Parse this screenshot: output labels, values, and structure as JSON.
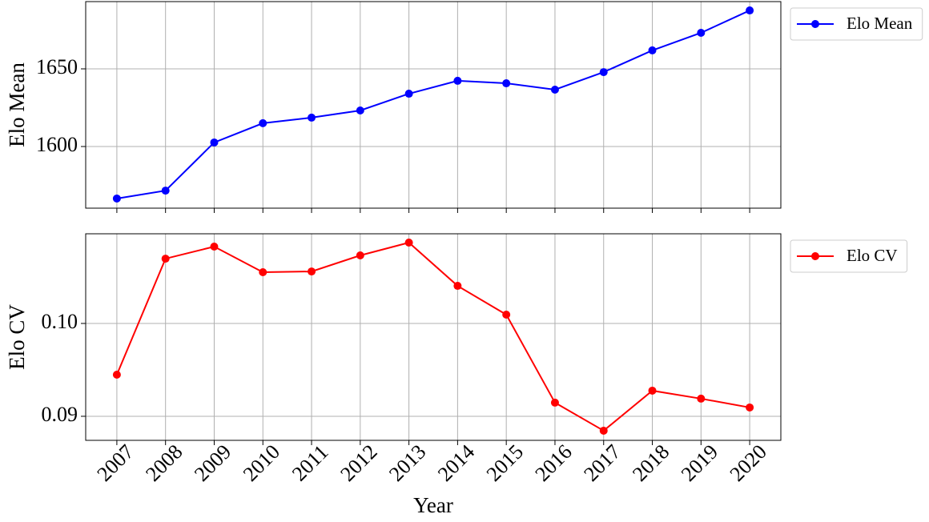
{
  "chart_data": [
    {
      "type": "line",
      "ylabel": "Elo Mean",
      "x": [
        2007,
        2008,
        2009,
        2010,
        2011,
        2012,
        2013,
        2014,
        2015,
        2016,
        2017,
        2018,
        2019,
        2020
      ],
      "series": [
        {
          "name": "Elo Mean",
          "color": "#0000ff",
          "values": [
            1566.5,
            1571.6,
            1602.6,
            1615,
            1618.6,
            1623.2,
            1634,
            1642.3,
            1640.7,
            1636.6,
            1647.9,
            1661.9,
            1673.2,
            1687.6
          ]
        }
      ],
      "xlim": [
        2006.36,
        2020.64
      ],
      "xticks": [
        2007,
        2008,
        2009,
        2010,
        2011,
        2012,
        2013,
        2014,
        2015,
        2016,
        2017,
        2018,
        2019,
        2020
      ],
      "ylim": [
        1560.3,
        1693.3
      ],
      "yticks": [
        1600,
        1650
      ],
      "grid": true,
      "legend": "outside-upper-right"
    },
    {
      "type": "line",
      "xlabel": "Year",
      "ylabel": "Elo CV",
      "x": [
        2007,
        2008,
        2009,
        2010,
        2011,
        2012,
        2013,
        2014,
        2015,
        2016,
        2017,
        2018,
        2019,
        2020
      ],
      "series": [
        {
          "name": "Elo CV",
          "color": "#ff0000",
          "values": [
            0.09448,
            0.10698,
            0.10828,
            0.10552,
            0.1056,
            0.10733,
            0.10871,
            0.10405,
            0.10095,
            0.09147,
            0.08845,
            0.09276,
            0.0919,
            0.09095
          ]
        }
      ],
      "xlim": [
        2006.36,
        2020.64
      ],
      "xticks": [
        2007,
        2008,
        2009,
        2010,
        2011,
        2012,
        2013,
        2014,
        2015,
        2016,
        2017,
        2018,
        2019,
        2020
      ],
      "ylim": [
        0.08741,
        0.10966
      ],
      "yticks": [
        {
          "value": 0.09,
          "label": "0.09"
        },
        {
          "value": 0.1,
          "label": "0.10"
        }
      ],
      "grid": true,
      "legend": "outside-upper-right"
    }
  ]
}
